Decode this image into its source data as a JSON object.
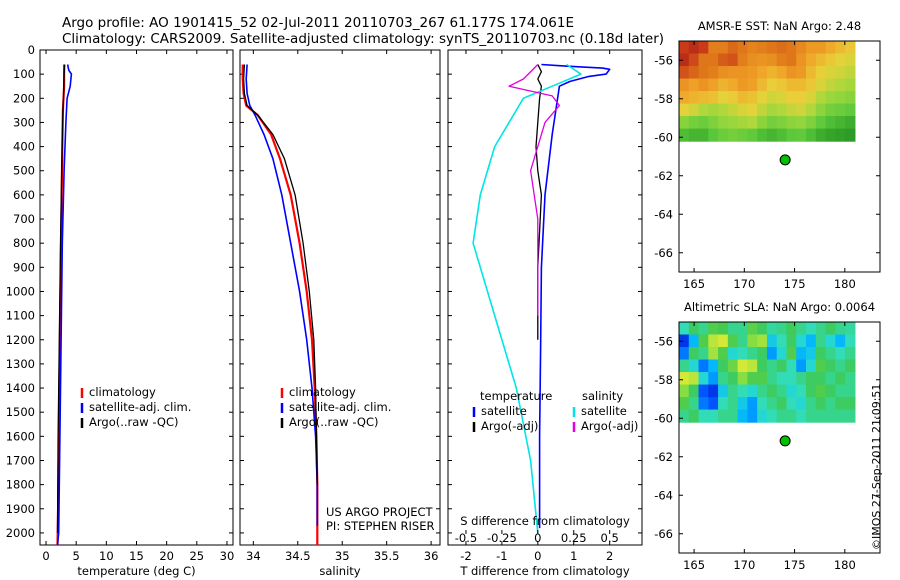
{
  "title_line1": "Argo profile: AO 1901415_52 02-Jul-2011 20110703_267 61.177S 174.061E",
  "title_line2": "Climatology: CARS2009. Satellite-adjusted climatology: synTS_20110703.nc (0.18d later)",
  "stamp": "©IMOS 27-Sep-2011 21:09:51",
  "colors": {
    "climatology": "#ff0000",
    "satellite": "#0000ff",
    "argo": "#000000",
    "sat_salinity": "#00e5e5",
    "argo_salinity": "#e000e0",
    "float_marker": "#00c000"
  },
  "depth_axis": {
    "ylim": [
      2050,
      0
    ],
    "ticks": [
      0,
      100,
      200,
      300,
      400,
      500,
      600,
      700,
      800,
      900,
      1000,
      1100,
      1200,
      1300,
      1400,
      1500,
      1600,
      1700,
      1800,
      1900,
      2000
    ]
  },
  "chart_data": [
    {
      "type": "line",
      "id": "temperature",
      "xlabel": "temperature (deg C)",
      "ylabel": "",
      "xlim": [
        -1,
        31
      ],
      "xticks": [
        0,
        5,
        10,
        15,
        20,
        25,
        30
      ],
      "legend": {
        "placement": "lower-center",
        "entries": [
          "climatology",
          "satellite-adj. clim.",
          "Argo(..raw -QC)"
        ]
      },
      "series": [
        {
          "name": "climatology",
          "color": "#ff0000",
          "width": 2.2,
          "x": [
            3.0,
            3.0,
            3.0,
            2.9,
            2.8,
            2.7,
            2.6,
            2.4,
            2.2,
            2.0,
            1.9
          ],
          "y": [
            60,
            100,
            150,
            200,
            250,
            400,
            600,
            1000,
            1400,
            1900,
            2050
          ]
        },
        {
          "name": "satellite-adj. clim.",
          "color": "#0000ff",
          "width": 1.6,
          "x": [
            3.6,
            3.7,
            3.8,
            4.2,
            4.0,
            3.5,
            3.3,
            3.0,
            2.7,
            2.5,
            2.3,
            2.1,
            1.9
          ],
          "y": [
            60,
            75,
            85,
            100,
            150,
            200,
            300,
            500,
            800,
            1200,
            1600,
            2000,
            2050
          ]
        },
        {
          "name": "Argo(..raw -QC)",
          "color": "#000000",
          "width": 1.3,
          "x": [
            3.1,
            3.0,
            2.95,
            2.9,
            2.8,
            2.6,
            2.4,
            2.2,
            2.0,
            1.9
          ],
          "y": [
            60,
            100,
            150,
            200,
            250,
            500,
            800,
            1200,
            1600,
            2000
          ]
        }
      ]
    },
    {
      "type": "line",
      "id": "salinity",
      "xlabel": "salinity",
      "ylabel": "",
      "xlim": [
        33.85,
        36.1
      ],
      "xticks": [
        34,
        34.5,
        35,
        35.5,
        36
      ],
      "xticklabels": [
        "34",
        "34.5",
        "35",
        "35.5",
        "36"
      ],
      "legend": {
        "placement": "lower-center",
        "entries": [
          "climatology",
          "satellite-adj. clim.",
          "Argo(..raw -QC)"
        ]
      },
      "annotations": [
        "US ARGO PROJECT",
        "PI: STEPHEN RISER"
      ],
      "series": [
        {
          "name": "climatology",
          "color": "#ff0000",
          "width": 2.2,
          "x": [
            33.88,
            33.88,
            33.89,
            33.92,
            34.05,
            34.2,
            34.3,
            34.42,
            34.52,
            34.6,
            34.66,
            34.69,
            34.71,
            34.72,
            34.72
          ],
          "y": [
            60,
            120,
            180,
            230,
            270,
            350,
            450,
            600,
            800,
            1000,
            1200,
            1400,
            1600,
            1800,
            2050
          ]
        },
        {
          "name": "satellite-adj. clim.",
          "color": "#0000ff",
          "width": 1.6,
          "x": [
            33.93,
            33.92,
            33.93,
            33.96,
            34.02,
            34.12,
            34.22,
            34.32,
            34.42,
            34.52,
            34.6,
            34.66,
            34.7,
            34.72,
            34.72
          ],
          "y": [
            60,
            120,
            180,
            230,
            270,
            350,
            450,
            600,
            800,
            1000,
            1200,
            1400,
            1600,
            1800,
            1970
          ]
        },
        {
          "name": "Argo(..raw -QC)",
          "color": "#000000",
          "width": 1.3,
          "x": [
            33.9,
            33.89,
            33.9,
            33.93,
            34.05,
            34.22,
            34.35,
            34.47,
            34.56,
            34.63,
            34.68,
            34.7,
            34.71,
            34.72
          ],
          "y": [
            60,
            120,
            180,
            230,
            270,
            350,
            450,
            600,
            800,
            1000,
            1200,
            1400,
            1600,
            1800
          ]
        }
      ]
    },
    {
      "type": "line",
      "id": "difference",
      "xlabel": "T difference from climatology",
      "xlim": [
        -2.5,
        2.9
      ],
      "xticks": [
        -2,
        -1,
        0,
        1,
        2
      ],
      "top_axis": {
        "label": "S difference from climatology",
        "ticks": [
          -0.5,
          -0.25,
          0,
          0.25,
          0.5
        ],
        "ticklabels": [
          "-0.5",
          "-0.25",
          "0",
          "0.25",
          "0.5"
        ],
        "scale": 4
      },
      "legend_temperature": {
        "title": "temperature",
        "entries": [
          "satellite",
          "Argo(-adj)"
        ]
      },
      "legend_salinity": {
        "title": "salinity",
        "entries": [
          "satellite",
          "Argo(-adj)"
        ]
      },
      "series": [
        {
          "name": "temperature satellite",
          "color": "#0000ff",
          "width": 1.6,
          "x": [
            0.1,
            0.6,
            1.2,
            1.8,
            2.0,
            1.9,
            1.4,
            0.9,
            0.6,
            0.4,
            0.2,
            0.1,
            0.08,
            0.05,
            0.05
          ],
          "y": [
            60,
            65,
            70,
            75,
            80,
            100,
            110,
            130,
            150,
            350,
            600,
            900,
            1200,
            1600,
            1980
          ]
        },
        {
          "name": "temperature Argo(-adj)",
          "color": "#000000",
          "width": 1.3,
          "x": [
            0.0,
            0.1,
            0.0,
            0.1,
            0.05,
            0.0,
            -0.05,
            0.0,
            0.1,
            0.0,
            0.0
          ],
          "y": [
            60,
            90,
            120,
            150,
            200,
            300,
            400,
            500,
            600,
            900,
            1200
          ]
        },
        {
          "name": "salinity satellite",
          "color": "#00e5e5",
          "width": 1.6,
          "x": [
            0.2,
            0.3,
            0.1,
            -0.1,
            -0.2,
            -0.3,
            -0.4,
            -0.45,
            -0.3,
            -0.15,
            -0.05,
            0.0
          ],
          "y": [
            60,
            100,
            150,
            200,
            300,
            400,
            600,
            800,
            1100,
            1400,
            1700,
            2000
          ]
        },
        {
          "name": "salinity Argo(-adj)",
          "color": "#e000e0",
          "width": 1.3,
          "x": [
            0.0,
            -0.1,
            -0.2,
            0.1,
            0.15,
            0.05,
            -0.05,
            0.0,
            0.0,
            0.0
          ],
          "y": [
            60,
            120,
            150,
            190,
            230,
            300,
            500,
            700,
            900,
            1100
          ]
        }
      ]
    },
    {
      "type": "heatmap",
      "id": "sst",
      "title": "AMSR-E SST: NaN Argo: 2.48",
      "xlim": [
        163.5,
        183.5
      ],
      "ylim": [
        -67,
        -55
      ],
      "xticks": [
        165,
        170,
        175,
        180
      ],
      "yticks": [
        -56,
        -58,
        -60,
        -62,
        -64,
        -66
      ],
      "data_extent": {
        "lon": [
          163.5,
          181
        ],
        "lat": [
          -60.2,
          -55
        ]
      },
      "colorscale": [
        "#1c8a1c",
        "#59c83c",
        "#9ed83c",
        "#e8d23a",
        "#f0a228",
        "#e07a1a",
        "#c83818",
        "#9a1414"
      ],
      "values": [
        [
          0.85,
          0.9,
          0.85,
          0.7,
          0.7,
          0.75,
          0.72,
          0.68,
          0.7,
          0.72,
          0.74,
          0.72,
          0.66,
          0.6,
          0.6,
          0.55,
          0.5,
          0.46
        ],
        [
          0.9,
          0.82,
          0.72,
          0.72,
          0.78,
          0.8,
          0.7,
          0.64,
          0.62,
          0.64,
          0.7,
          0.72,
          0.62,
          0.55,
          0.5,
          0.46,
          0.42,
          0.4
        ],
        [
          0.8,
          0.76,
          0.72,
          0.7,
          0.64,
          0.62,
          0.62,
          0.6,
          0.56,
          0.52,
          0.56,
          0.62,
          0.6,
          0.5,
          0.44,
          0.4,
          0.38,
          0.35
        ],
        [
          0.62,
          0.58,
          0.62,
          0.58,
          0.52,
          0.55,
          0.6,
          0.58,
          0.5,
          0.44,
          0.46,
          0.5,
          0.5,
          0.46,
          0.4,
          0.35,
          0.32,
          0.3
        ],
        [
          0.55,
          0.52,
          0.5,
          0.48,
          0.42,
          0.45,
          0.5,
          0.48,
          0.42,
          0.38,
          0.4,
          0.44,
          0.44,
          0.4,
          0.32,
          0.28,
          0.26,
          0.24
        ],
        [
          0.42,
          0.38,
          0.32,
          0.3,
          0.32,
          0.36,
          0.4,
          0.42,
          0.35,
          0.3,
          0.32,
          0.36,
          0.38,
          0.32,
          0.25,
          0.2,
          0.18,
          0.16
        ],
        [
          0.24,
          0.2,
          0.18,
          0.22,
          0.26,
          0.28,
          0.3,
          0.32,
          0.25,
          0.2,
          0.22,
          0.25,
          0.26,
          0.22,
          0.16,
          0.12,
          0.1,
          0.08
        ],
        [
          0.12,
          0.1,
          0.1,
          0.14,
          0.18,
          0.2,
          0.18,
          0.16,
          0.12,
          0.1,
          0.12,
          0.15,
          0.16,
          0.12,
          0.08,
          0.06,
          0.05,
          0.04
        ]
      ],
      "marker": {
        "lon": 174.061,
        "lat": -61.177
      }
    },
    {
      "type": "heatmap",
      "id": "sla",
      "title": "Altimetric SLA: NaN Argo: 0.0064",
      "xlim": [
        163.5,
        183.5
      ],
      "ylim": [
        -67,
        -55
      ],
      "xticks": [
        165,
        170,
        175,
        180
      ],
      "yticks": [
        -56,
        -58,
        -60,
        -62,
        -64,
        -66
      ],
      "data_extent": {
        "lon": [
          163.5,
          181
        ],
        "lat": [
          -60.2,
          -55
        ]
      },
      "colorscale": [
        "#0000b4",
        "#0050ff",
        "#00b4ff",
        "#2ee0c8",
        "#40c850",
        "#8ee040",
        "#d8e838",
        "#f0c020"
      ],
      "values": [
        [
          0.45,
          0.55,
          0.5,
          0.6,
          0.58,
          0.5,
          0.5,
          0.62,
          0.55,
          0.48,
          0.5,
          0.56,
          0.5,
          0.45,
          0.5,
          0.55,
          0.5,
          0.48
        ],
        [
          0.1,
          0.3,
          0.6,
          0.8,
          0.85,
          0.6,
          0.5,
          0.7,
          0.75,
          0.35,
          0.45,
          0.55,
          0.4,
          0.3,
          0.5,
          0.4,
          0.3,
          0.45
        ],
        [
          0.2,
          0.55,
          0.5,
          0.75,
          0.6,
          0.4,
          0.45,
          0.5,
          0.55,
          0.25,
          0.4,
          0.6,
          0.3,
          0.35,
          0.55,
          0.5,
          0.45,
          0.5
        ],
        [
          0.5,
          0.4,
          0.2,
          0.3,
          0.55,
          0.65,
          0.85,
          0.8,
          0.55,
          0.5,
          0.55,
          0.45,
          0.25,
          0.4,
          0.6,
          0.55,
          0.5,
          0.55
        ],
        [
          0.85,
          0.8,
          0.4,
          0.25,
          0.5,
          0.55,
          0.7,
          0.6,
          0.6,
          0.5,
          0.45,
          0.45,
          0.5,
          0.55,
          0.55,
          0.5,
          0.55,
          0.5
        ],
        [
          0.7,
          0.55,
          0.15,
          0.1,
          0.35,
          0.5,
          0.45,
          0.4,
          0.5,
          0.55,
          0.5,
          0.4,
          0.45,
          0.55,
          0.6,
          0.55,
          0.5,
          0.5
        ],
        [
          0.6,
          0.5,
          0.2,
          0.15,
          0.45,
          0.5,
          0.35,
          0.25,
          0.45,
          0.5,
          0.55,
          0.45,
          0.4,
          0.5,
          0.55,
          0.5,
          0.55,
          0.55
        ],
        [
          0.5,
          0.55,
          0.45,
          0.45,
          0.5,
          0.5,
          0.3,
          0.25,
          0.4,
          0.45,
          0.5,
          0.5,
          0.45,
          0.5,
          0.5,
          0.5,
          0.5,
          0.5
        ]
      ],
      "marker": {
        "lon": 174.061,
        "lat": -61.177
      }
    }
  ]
}
